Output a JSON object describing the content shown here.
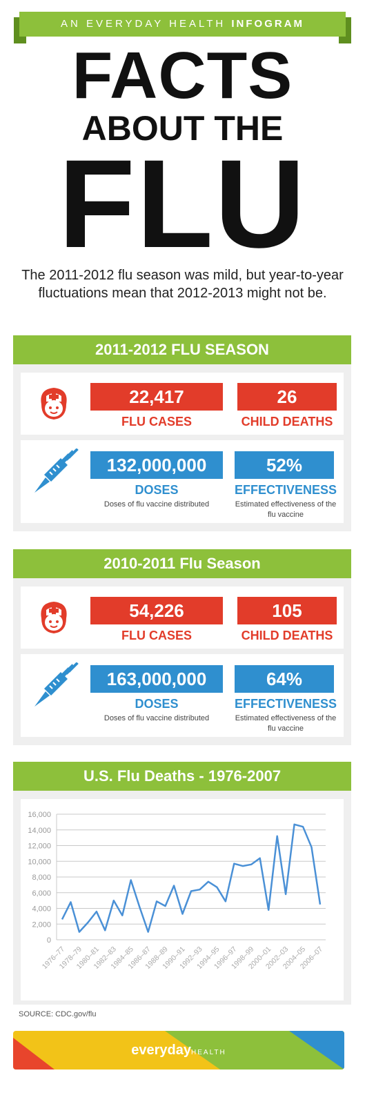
{
  "banner": {
    "prefix": "AN EVERYDAY HEALTH",
    "suffix": "INFOGRAM"
  },
  "title": {
    "line1": "FACTS",
    "line2": "ABOUT THE",
    "line3": "FLU"
  },
  "intro": "The 2011-2012 flu season was mild, but year-to-year fluctuations mean that 2012-2013 might not be.",
  "season_2011": {
    "heading": "2011-2012 FLU SEASON",
    "flu_cases_value": "22,417",
    "flu_cases_label": "FLU CASES",
    "child_deaths_value": "26",
    "child_deaths_label": "CHILD DEATHS",
    "doses_value": "132,000,000",
    "doses_label": "DOSES",
    "doses_note": "Doses of flu vaccine distributed",
    "effectiveness_value": "52%",
    "effectiveness_label": "EFFECTIVENESS",
    "effectiveness_note": "Estimated effectiveness of the flu vaccine"
  },
  "season_2010": {
    "heading": "2010-2011 Flu Season",
    "flu_cases_value": "54,226",
    "flu_cases_label": "FLU CASES",
    "child_deaths_value": "105",
    "child_deaths_label": "CHILD DEATHS",
    "doses_value": "163,000,000",
    "doses_label": "DOSES",
    "doses_note": "Doses of flu vaccine distributed",
    "effectiveness_value": "64%",
    "effectiveness_label": "EFFECTIVENESS",
    "effectiveness_note": "Estimated effectiveness of the flu vaccine"
  },
  "chart_heading": "U.S. Flu Deaths - 1976-2007",
  "chart_data": {
    "type": "line",
    "title": "U.S. Flu Deaths - 1976-2007",
    "y_ticks": [
      "16,000",
      "14,000",
      "12,000",
      "10,000",
      "8,000",
      "6,000",
      "4,000",
      "2,000",
      "0"
    ],
    "ylim": [
      0,
      16000
    ],
    "x_tick_labels": [
      "1976–77",
      "1978–79",
      "1980–81",
      "1982–83",
      "1984–85",
      "1986–87",
      "1988–89",
      "1990–91",
      "1992–93",
      "1994–95",
      "1996–97",
      "1998–99",
      "2000–01",
      "2002–03",
      "2004–05",
      "2006–07"
    ],
    "x": [
      "1976–77",
      "1977–78",
      "1978–79",
      "1979–80",
      "1980–81",
      "1981–82",
      "1982–83",
      "1983–84",
      "1984–85",
      "1985–86",
      "1986–87",
      "1987–88",
      "1988–89",
      "1989–90",
      "1990–91",
      "1991–92",
      "1992–93",
      "1993–94",
      "1994–95",
      "1995–96",
      "1996–97",
      "1997–98",
      "1998–99",
      "1999–00",
      "2000–01",
      "2001–02",
      "2002–03",
      "2003–04",
      "2004–05",
      "2005–06",
      "2006–07"
    ],
    "values": [
      2600,
      4800,
      1000,
      2200,
      3600,
      1200,
      5000,
      3100,
      7600,
      4200,
      1000,
      4900,
      4300,
      6900,
      3300,
      6200,
      6400,
      7400,
      6700,
      4900,
      9700,
      9400,
      9600,
      10400,
      3800,
      13200,
      5800,
      14700,
      14400,
      11800,
      4500
    ],
    "grid": true,
    "line_color": "#4a90d6"
  },
  "source": "SOURCE: CDC.gov/flu",
  "footer": {
    "brand": "everyday",
    "brand_suffix": "HEALTH"
  },
  "colors": {
    "green": "#8dc03b",
    "red": "#e23c2a",
    "blue": "#2f8fcf"
  }
}
